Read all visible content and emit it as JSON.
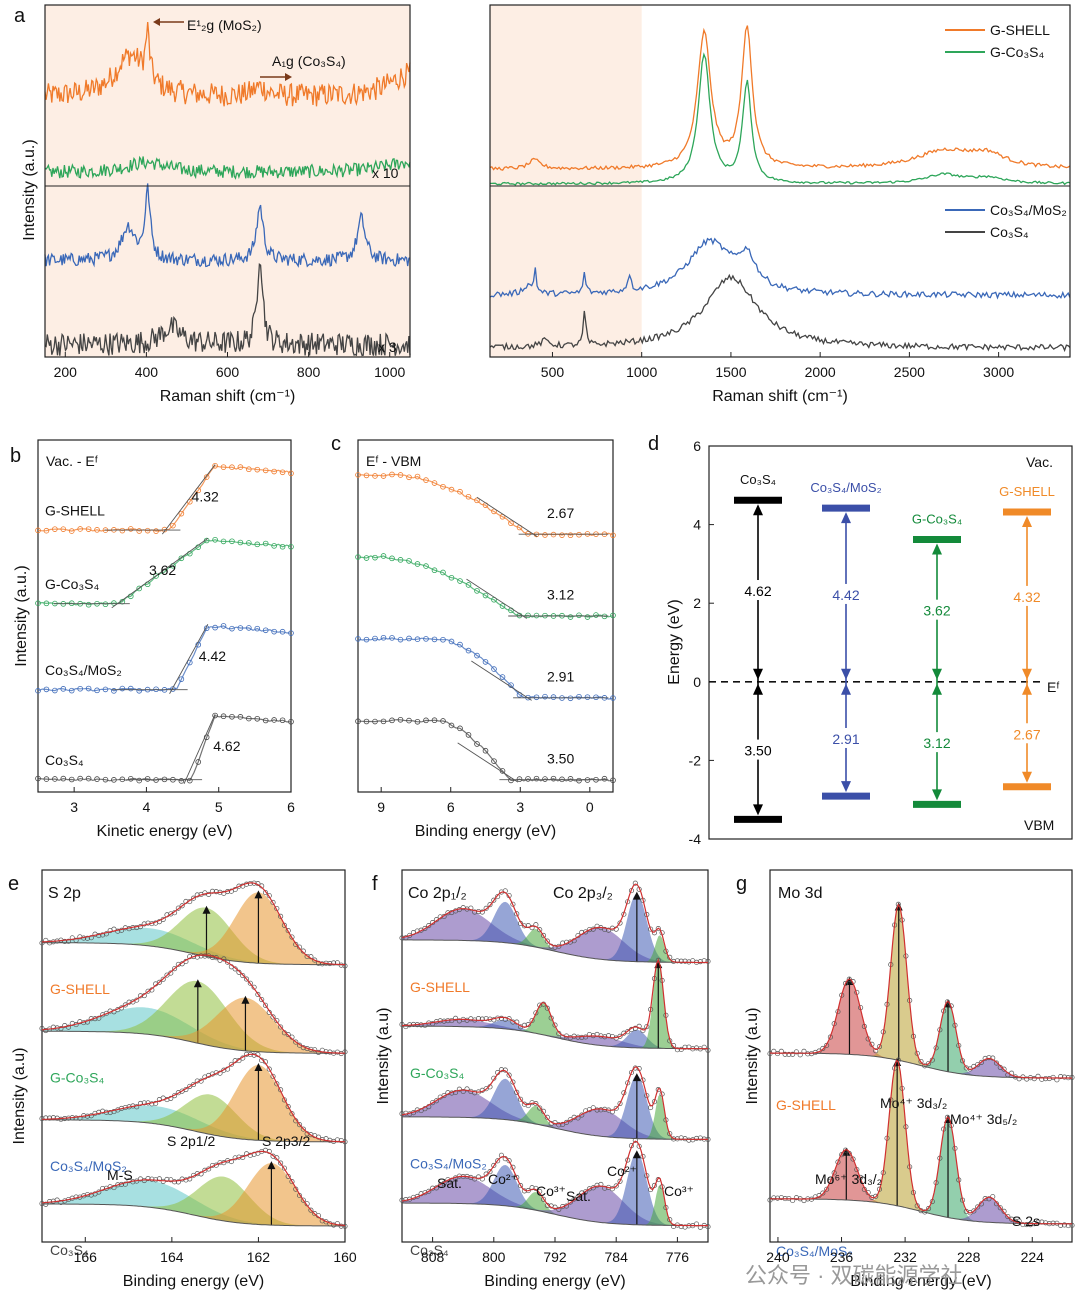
{
  "panel_letters": {
    "a": "a",
    "b": "b",
    "c": "c",
    "d": "d",
    "e": "e",
    "f": "f",
    "g": "g"
  },
  "watermark": "公众号 · 双碳能源学社",
  "colors": {
    "gshell": "#f07a2a",
    "gco3s4": "#2ea65a",
    "co3s4mos2": "#3a68b8",
    "co3s4": "#444444",
    "d_co3s4": "#000000",
    "d_co3s4mos2": "#3b4fa8",
    "d_gco3s4": "#138a3a",
    "d_gshell": "#f08a28",
    "shade": "#fdeee4"
  },
  "chart_data": [
    {
      "id": "a_left",
      "type": "line",
      "title": "",
      "xlabel": "Raman shift (cm⁻¹)",
      "ylabel": "Intensity (a.u.)",
      "xlim": [
        150,
        1050
      ],
      "xticks": [
        200,
        400,
        600,
        800,
        1000
      ],
      "annotations": [
        "E¹₂g (MoS₂)",
        "A₁g (Co₃S₄)",
        "x 10",
        "x 3"
      ],
      "series": [
        {
          "name": "G-SHELL",
          "color": "gshell",
          "offset": 3.1,
          "scale": 0.55,
          "noise": 0.14,
          "peaks": [
            [
              360,
              45,
              0.9
            ],
            [
              403,
              6,
              1.0
            ],
            [
              680,
              20,
              0.2
            ],
            [
              1050,
              60,
              0.5
            ]
          ]
        },
        {
          "name": "G-Co₃S₄",
          "color": "gco3s4",
          "offset": 2.2,
          "scale": 0.3,
          "noise": 0.08,
          "peaks": [
            [
              400,
              60,
              0.4
            ],
            [
              1050,
              80,
              0.4
            ]
          ]
        },
        {
          "name": "Co₃S₄/MoS₂",
          "color": "co3s4mos2",
          "offset": 1.15,
          "scale": 0.5,
          "noise": 0.08,
          "peaks": [
            [
              355,
              20,
              0.8
            ],
            [
              403,
              8,
              1.6
            ],
            [
              680,
              10,
              1.3
            ],
            [
              930,
              12,
              1.0
            ]
          ]
        },
        {
          "name": "Co₃S₄",
          "color": "co3s4",
          "offset": 0.15,
          "scale": 0.5,
          "noise": 0.14,
          "peaks": [
            [
              460,
              30,
              0.4
            ],
            [
              680,
              8,
              2.2
            ]
          ]
        }
      ]
    },
    {
      "id": "a_right",
      "type": "line",
      "xlabel": "Raman shift (cm⁻¹)",
      "xlim": [
        150,
        3400
      ],
      "xticks": [
        500,
        1000,
        1500,
        2000,
        2500,
        3000
      ],
      "legend_top": [
        "G-SHELL",
        "G-Co₃S₄"
      ],
      "legend_bottom": [
        "Co₃S₄/MoS₂",
        "Co₃S₄"
      ],
      "series": [
        {
          "name": "G-SHELL",
          "color": "gshell",
          "offset": 3.2,
          "scale": 1.0,
          "noise": 0.03,
          "peaks": [
            [
              1350,
              45,
              2.3
            ],
            [
              1590,
              35,
              2.4
            ],
            [
              2700,
              200,
              0.3
            ],
            [
              2940,
              120,
              0.2
            ],
            [
              400,
              40,
              0.15
            ]
          ]
        },
        {
          "name": "G-Co₃S₄",
          "color": "gco3s4",
          "offset": 2.95,
          "scale": 1.0,
          "noise": 0.02,
          "peaks": [
            [
              1350,
              40,
              2.2
            ],
            [
              1590,
              30,
              1.7
            ],
            [
              2690,
              120,
              0.15
            ],
            [
              2940,
              120,
              0.1
            ]
          ]
        },
        {
          "name": "Co₃S₄/MoS₂",
          "color": "co3s4mos2",
          "offset": 1.05,
          "scale": 1.0,
          "noise": 0.05,
          "peaks": [
            [
              1380,
              150,
              0.9
            ],
            [
              1590,
              60,
              0.5
            ],
            [
              403,
              8,
              0.4
            ],
            [
              680,
              8,
              0.35
            ],
            [
              930,
              10,
              0.3
            ],
            [
              360,
              30,
              0.15
            ]
          ]
        },
        {
          "name": "Co₃S₄",
          "color": "co3s4",
          "offset": 0.15,
          "scale": 1.0,
          "noise": 0.05,
          "peaks": [
            [
              1500,
              180,
              1.2
            ],
            [
              680,
              8,
              0.6
            ],
            [
              460,
              30,
              0.1
            ]
          ]
        }
      ]
    },
    {
      "id": "b",
      "type": "line",
      "title": "Vac. - Eᶠ",
      "xlabel": "Kinetic energy (eV)",
      "ylabel": "Intensity (a.u.)",
      "xlim": [
        2.5,
        6
      ],
      "xticks": [
        3,
        4,
        5,
        6
      ],
      "series": [
        {
          "name": "G-SHELL",
          "color": "gshell",
          "value": "4.32",
          "onset": 4.32,
          "top": 4.95,
          "base": 3.2
        },
        {
          "name": "G-Co₃S₄",
          "color": "gco3s4",
          "value": "3.62",
          "onset": 3.62,
          "top": 4.85,
          "base": 2.3
        },
        {
          "name": "Co₃S₄/MoS₂",
          "color": "co3s4mos2",
          "value": "4.42",
          "onset": 4.42,
          "top": 4.85,
          "base": 1.25
        },
        {
          "name": "Co₃S₄",
          "color": "co3s4",
          "value": "4.62",
          "onset": 4.62,
          "top": 4.95,
          "base": 0.15
        }
      ]
    },
    {
      "id": "c",
      "type": "line",
      "title": "Eᶠ - VBM",
      "xlabel": "Binding energy (eV)",
      "xlim": [
        10,
        -1
      ],
      "xticks": [
        9,
        6,
        3,
        0
      ],
      "series": [
        {
          "name": "G-SHELL",
          "color": "gshell",
          "value": "2.67",
          "vbm": 2.67,
          "start": 8.2,
          "base": 3.15
        },
        {
          "name": "G-Co₃S₄",
          "color": "gco3s4",
          "value": "3.12",
          "vbm": 3.12,
          "start": 9.0,
          "base": 2.15
        },
        {
          "name": "Co₃S₄/MoS₂",
          "color": "co3s4mos2",
          "value": "2.91",
          "vbm": 2.91,
          "start": 6.5,
          "base": 1.15
        },
        {
          "name": "Co₃S₄",
          "color": "co3s4",
          "value": "3.50",
          "vbm": 3.5,
          "start": 6.5,
          "base": 0.15
        }
      ]
    },
    {
      "id": "d",
      "type": "bar",
      "ylabel": "Energy (eV)",
      "ylim": [
        -4,
        6
      ],
      "yticks": [
        -4,
        -2,
        0,
        2,
        4,
        6
      ],
      "top_label": "Vac.",
      "bottom_label": "VBM",
      "ef_label": "Eᶠ",
      "series": [
        {
          "name": "Co₃S₄",
          "color": "d_co3s4",
          "vac": 4.62,
          "vbm": -3.5,
          "vac_label": "4.62",
          "vbm_label": "3.50"
        },
        {
          "name": "Co₃S₄/MoS₂",
          "color": "d_co3s4mos2",
          "vac": 4.42,
          "vbm": -2.91,
          "vac_label": "4.42",
          "vbm_label": "2.91"
        },
        {
          "name": "G-Co₃S₄",
          "color": "d_gco3s4",
          "vac": 3.62,
          "vbm": -3.12,
          "vac_label": "3.62",
          "vbm_label": "3.12"
        },
        {
          "name": "G-SHELL",
          "color": "d_gshell",
          "vac": 4.32,
          "vbm": -2.67,
          "vac_label": "4.32",
          "vbm_label": "2.67"
        }
      ]
    },
    {
      "id": "e",
      "type": "area",
      "title": "S 2p",
      "xlabel": "Binding energy (eV)",
      "ylabel": "Intensity (a.u)",
      "xlim": [
        167,
        160
      ],
      "xticks": [
        166,
        164,
        162,
        160
      ],
      "annotations": [
        "M-S",
        "S 2p1/2",
        "S 2p3/2"
      ],
      "series": [
        {
          "name": "G-SHELL",
          "color": "gshell",
          "offset": 3.05,
          "peaks": [
            [
              164.5,
              1.0,
              0.2,
              "#5fc7c9"
            ],
            [
              163.2,
              0.6,
              0.55,
              "#8fbf3e"
            ],
            [
              162.0,
              0.55,
              0.8,
              "#e8962d"
            ]
          ]
        },
        {
          "name": "G-Co₃S₄",
          "color": "gco3s4",
          "offset": 2.05,
          "peaks": [
            [
              164.6,
              1.0,
              0.3,
              "#5fc7c9"
            ],
            [
              163.4,
              0.7,
              0.7,
              "#8fbf3e"
            ],
            [
              162.3,
              0.65,
              0.6,
              "#e8962d"
            ]
          ]
        },
        {
          "name": "Co₃S₄/MoS₂",
          "color": "co3s4mos2",
          "offset": 1.05,
          "peaks": [
            [
              164.3,
              1.0,
              0.2,
              "#5fc7c9"
            ],
            [
              163.1,
              0.6,
              0.45,
              "#8fbf3e"
            ],
            [
              162.0,
              0.55,
              0.85,
              "#e8962d"
            ]
          ]
        },
        {
          "name": "Co₃S₄",
          "color": "co3s4",
          "offset": 0.1,
          "peaks": [
            [
              164.5,
              1.0,
              0.3,
              "#5fc7c9"
            ],
            [
              162.8,
              0.6,
              0.5,
              "#8fbf3e"
            ],
            [
              161.7,
              0.55,
              0.7,
              "#e8962d"
            ]
          ]
        }
      ]
    },
    {
      "id": "f",
      "type": "area",
      "title": "Co 2p₁/₂",
      "title2": "Co 2p₃/₂",
      "xlabel": "Binding energy (eV)",
      "ylabel": "Intensity (a.u)",
      "xlim": [
        812,
        772
      ],
      "xticks": [
        808,
        800,
        792,
        784,
        776
      ],
      "annotations": [
        "Sat.",
        "Co²⁺",
        "Co³⁺",
        "Sat.",
        "Co²⁺",
        "Co³⁺"
      ],
      "series": [
        {
          "name": "G-SHELL",
          "color": "gshell",
          "offset": 3.0,
          "peaks": [
            [
              804,
              3.5,
              0.35,
              "#6a4aa8"
            ],
            [
              798.5,
              1.5,
              0.45,
              "#3f5bb5"
            ],
            [
              794.5,
              1.0,
              0.2,
              "#4aa83c"
            ],
            [
              786,
              3.0,
              0.35,
              "#6a4aa8"
            ],
            [
              781.3,
              1.3,
              0.75,
              "#3f5bb5"
            ],
            [
              778.3,
              0.6,
              0.3,
              "#4aa83c"
            ]
          ]
        },
        {
          "name": "G-Co₃S₄",
          "color": "gco3s4",
          "offset": 2.05,
          "peaks": [
            [
              804,
              3.5,
              0.08,
              "#6a4aa8"
            ],
            [
              798.5,
              1.5,
              0.1,
              "#3f5bb5"
            ],
            [
              793.5,
              1.0,
              0.35,
              "#4aa83c"
            ],
            [
              786,
              3.0,
              0.1,
              "#6a4aa8"
            ],
            [
              781.3,
              1.3,
              0.2,
              "#3f5bb5"
            ],
            [
              778.5,
              0.7,
              0.95,
              "#4aa83c"
            ]
          ]
        },
        {
          "name": "Co₃S₄/MoS₂",
          "color": "co3s4mos2",
          "offset": 1.05,
          "peaks": [
            [
              804,
              3.5,
              0.3,
              "#6a4aa8"
            ],
            [
              798.5,
              1.5,
              0.45,
              "#3f5bb5"
            ],
            [
              794.5,
              1.0,
              0.2,
              "#4aa83c"
            ],
            [
              786,
              3.0,
              0.3,
              "#6a4aa8"
            ],
            [
              781.3,
              1.3,
              0.7,
              "#3f5bb5"
            ],
            [
              778.3,
              0.6,
              0.5,
              "#4aa83c"
            ]
          ]
        },
        {
          "name": "Co₃S₄",
          "color": "co3s4",
          "offset": 0.1,
          "peaks": [
            [
              804,
              3.5,
              0.3,
              "#6a4aa8"
            ],
            [
              798.5,
              1.5,
              0.45,
              "#3f5bb5"
            ],
            [
              794.5,
              1.0,
              0.2,
              "#4aa83c"
            ],
            [
              786,
              3.0,
              0.4,
              "#6a4aa8"
            ],
            [
              781.3,
              1.3,
              0.8,
              "#3f5bb5"
            ],
            [
              778.3,
              0.6,
              0.45,
              "#4aa83c"
            ]
          ]
        }
      ]
    },
    {
      "id": "g",
      "type": "area",
      "title": "Mo 3d",
      "xlabel": "Binding energy (eV)",
      "ylabel": "Intensity (a.u)",
      "xlim": [
        240.5,
        221.5
      ],
      "xticks": [
        240,
        236,
        232,
        228,
        224
      ],
      "annotations": [
        "Mo⁶⁺ 3d₃/₂",
        "Mo⁴⁺ 3d₃/₂",
        "Mo⁴⁺ 3d₅/₂",
        "S 2s"
      ],
      "series": [
        {
          "name": "G-SHELL",
          "color": "gshell",
          "offset": 1.55,
          "peaks": [
            [
              235.5,
              0.7,
              0.75,
              "#c84040"
            ],
            [
              232.4,
              0.5,
              1.55,
              "#b9a030"
            ],
            [
              229.3,
              0.5,
              0.7,
              "#3aa86a"
            ],
            [
              226.7,
              0.7,
              0.18,
              "#6a4aa8"
            ]
          ]
        },
        {
          "name": "Co₃S₄/MoS₂",
          "color": "co3s4mos2",
          "offset": 0.1,
          "peaks": [
            [
              235.7,
              0.7,
              0.5,
              "#c84040"
            ],
            [
              232.5,
              0.5,
              1.45,
              "#b9a030"
            ],
            [
              229.3,
              0.5,
              1.0,
              "#3aa86a"
            ],
            [
              226.7,
              0.7,
              0.25,
              "#6a4aa8"
            ]
          ]
        }
      ]
    }
  ]
}
